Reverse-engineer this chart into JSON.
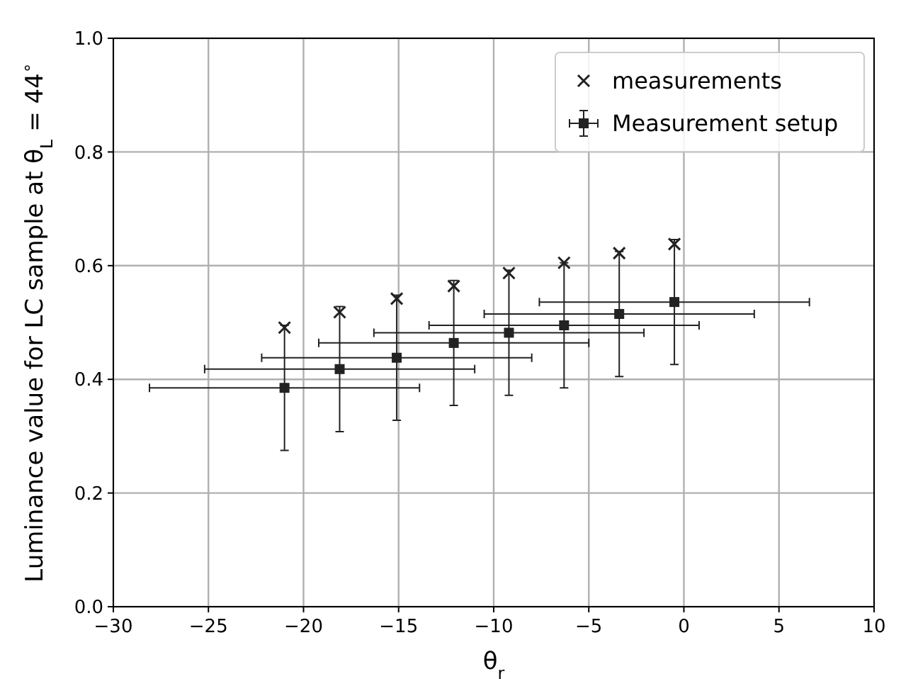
{
  "chart_data": {
    "type": "scatter",
    "xlabel": "θ$_{r}$",
    "ylabel": "Luminance value for LC sample at θ$_{L}$ = 44$^{∘}$",
    "xlim": [
      -30,
      10
    ],
    "xticks": [
      {
        "value": -30,
        "label": "−30"
      },
      {
        "value": -25,
        "label": "−25"
      },
      {
        "value": -20,
        "label": "−20"
      },
      {
        "value": -15,
        "label": "−15"
      },
      {
        "value": -10,
        "label": "−10"
      },
      {
        "value": -5,
        "label": "−5"
      },
      0,
      5,
      10
    ],
    "ylim": [
      0,
      1
    ],
    "yticks": [
      {
        "value": 0,
        "label": "0.0"
      },
      0.2,
      0.4,
      0.6,
      0.8,
      {
        "value": 1,
        "label": "1.0"
      }
    ],
    "grid": true,
    "legend": "top right",
    "series": [
      {
        "name": "measurements",
        "color": "#222222",
        "marker": "cross",
        "x": [
          -21,
          -18.1,
          -15.1,
          -12.1,
          -9.2,
          -6.3,
          -3.4,
          -0.5
        ],
        "values": [
          0.491,
          0.518,
          0.542,
          0.564,
          0.587,
          0.605,
          0.622,
          0.638
        ]
      },
      {
        "name": "Measurement setup",
        "color": "#222222",
        "marker": "square",
        "x": [
          -21,
          -18.1,
          -15.1,
          -12.1,
          -9.2,
          -6.3,
          -3.4,
          -0.5
        ],
        "values": [
          0.385,
          0.418,
          0.438,
          0.464,
          0.482,
          0.495,
          0.515,
          0.536
        ],
        "errors": [
          0.11,
          0.11,
          0.11,
          0.11,
          0.11,
          0.11,
          0.11,
          0.11
        ],
        "xerrors": [
          7.1,
          7.1,
          7.1,
          7.1,
          7.1,
          7.1,
          7.1,
          7.1
        ]
      }
    ]
  }
}
